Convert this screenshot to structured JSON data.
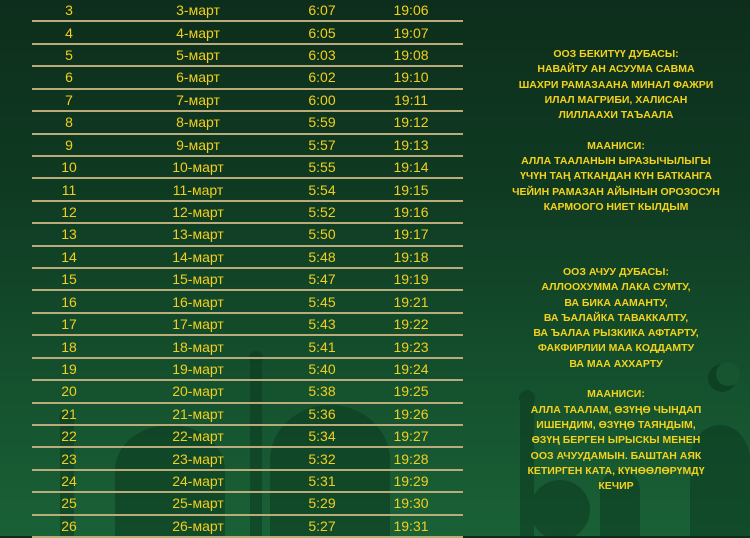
{
  "colors": {
    "text": "#f2cf1f",
    "divider": "#b9ac7a",
    "background": "#0f3a22"
  },
  "rows": [
    [
      "3",
      "3-март",
      "6:07",
      "19:06"
    ],
    [
      "4",
      "4-март",
      "6:05",
      "19:07"
    ],
    [
      "5",
      "5-март",
      "6:03",
      "19:08"
    ],
    [
      "6",
      "6-март",
      "6:02",
      "19:10"
    ],
    [
      "7",
      "7-март",
      "6:00",
      "19:11"
    ],
    [
      "8",
      "8-март",
      "5:59",
      "19:12"
    ],
    [
      "9",
      "9-март",
      "5:57",
      "19:13"
    ],
    [
      "10",
      "10-март",
      "5:55",
      "19:14"
    ],
    [
      "11",
      "11-март",
      "5:54",
      "19:15"
    ],
    [
      "12",
      "12-март",
      "5:52",
      "19:16"
    ],
    [
      "13",
      "13-март",
      "5:50",
      "19:17"
    ],
    [
      "14",
      "14-март",
      "5:48",
      "19:18"
    ],
    [
      "15",
      "15-март",
      "5:47",
      "19:19"
    ],
    [
      "16",
      "16-март",
      "5:45",
      "19:21"
    ],
    [
      "17",
      "17-март",
      "5:43",
      "19:22"
    ],
    [
      "18",
      "18-март",
      "5:41",
      "19:23"
    ],
    [
      "19",
      "19-март",
      "5:40",
      "19:24"
    ],
    [
      "20",
      "20-март",
      "5:38",
      "19:25"
    ],
    [
      "21",
      "21-март",
      "5:36",
      "19:26"
    ],
    [
      "22",
      "22-март",
      "5:34",
      "19:27"
    ],
    [
      "23",
      "23-март",
      "5:32",
      "19:28"
    ],
    [
      "24",
      "24-март",
      "5:31",
      "19:29"
    ],
    [
      "25",
      "25-март",
      "5:29",
      "19:30"
    ],
    [
      "26",
      "26-март",
      "5:27",
      "19:31"
    ]
  ],
  "suhoor_dua": {
    "lines": [
      "ООЗ БЕКИТҮҮ ДУБАСЫ:",
      "НАВАЙТУ АН АСУУМА САВМА",
      "ШАХРИ РАМАЗААНА МИНАЛ ФАЖРИ",
      "ИЛАЛ МАГРИБИ, ХАЛИСАН",
      "ЛИЛЛААХИ ТАЪААЛА",
      "",
      "МААНИСИ:",
      "АЛЛА ТААЛАНЫН ЫРАЗЫЧЫЛЫГЫ",
      "ҮЧҮН ТАҢ АТКАНДАН КҮН БАТКАНГА",
      "ЧЕЙИН РАМАЗАН АЙЫНЫН ОРОЗОСУН",
      "КАРМООГО НИЕТ КЫЛДЫМ"
    ]
  },
  "iftar_dua": {
    "lines": [
      "ООЗ АЧУУ ДУБАСЫ:",
      "АЛЛООХУММА ЛАКА СУМТУ,",
      "ВА БИКА ААМАНТУ,",
      "ВА ЪАЛАЙКА ТАВАККАЛТУ,",
      "ВА ЪАЛАА РЫЗКИКА АФТАРТУ,",
      "ФАКФИРЛИИ МАА КОДДАМТУ",
      "ВА МАА АХХАРТУ",
      "",
      "МААНИСИ:",
      "АЛЛА ТААЛАМ, ӨЗҮҢӨ ЧЫНДАП",
      "ИШЕНДИМ, ӨЗҮҢӨ ТАЯНДЫМ,",
      "ӨЗҮҢ БЕРГЕН ЫРЫСКЫ МЕНЕН",
      "ООЗ АЧУУДАМЫН. БАШТАН АЯК",
      "КЕТИРГЕН КАТА, КҮНӨӨЛӨРҮМДҮ",
      "КЕЧИР"
    ]
  }
}
